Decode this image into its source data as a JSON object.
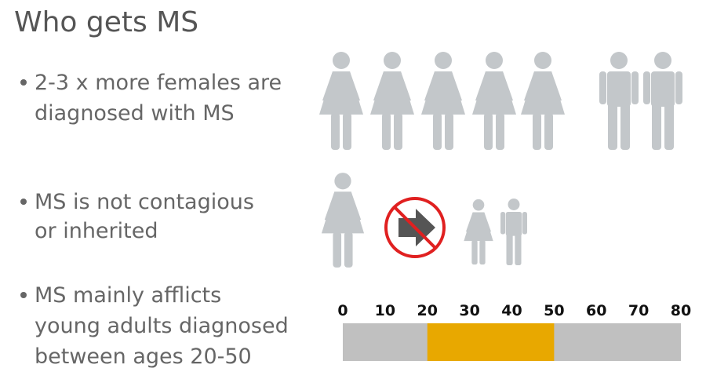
{
  "title": "Who gets MS",
  "bullets": [
    {
      "lines": [
        "2-3 x more females are",
        "diagnosed with MS"
      ]
    },
    {
      "lines": [
        "MS is not contagious",
        "or inherited"
      ]
    },
    {
      "lines": [
        "MS mainly afflicts",
        "young adults diagnosed",
        "between ages 20-50"
      ]
    }
  ],
  "age_scale": {
    "lim": [
      0,
      80
    ],
    "ticks": [
      0,
      10,
      20,
      30,
      40,
      50,
      60,
      70,
      80
    ],
    "range": [
      20,
      50
    ],
    "color": "#c0c0c0",
    "range_color": "#e8a800"
  }
}
